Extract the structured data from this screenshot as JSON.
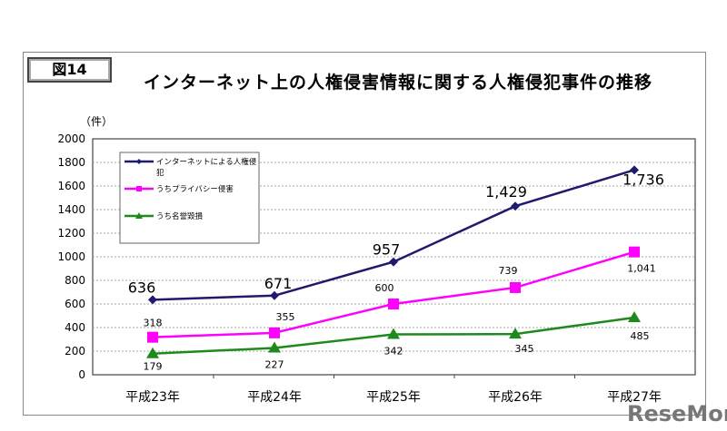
{
  "figure_label": "図14",
  "watermark": "ReseMom",
  "chart_data": {
    "type": "line",
    "title": "インターネット上の人権侵害情報に関する人権侵犯事件の推移",
    "ylabel": "（件）",
    "ylim": [
      0,
      2000
    ],
    "yticks": [
      0,
      200,
      400,
      600,
      800,
      1000,
      1200,
      1400,
      1600,
      1800,
      2000
    ],
    "grid": true,
    "legend_position": "top-left",
    "categories": [
      "平成23年",
      "平成24年",
      "平成25年",
      "平成26年",
      "平成27年"
    ],
    "series": [
      {
        "name": "インターネットによる人権侵犯",
        "color": "#1f1a6e",
        "marker": "diamond",
        "values": [
          636,
          671,
          957,
          1429,
          1736
        ],
        "labels": [
          "636",
          "671",
          "957",
          "1,429",
          "1,736"
        ]
      },
      {
        "name": "うちプライバシー侵害",
        "color": "#ff00ff",
        "marker": "square",
        "values": [
          318,
          355,
          600,
          739,
          1041
        ],
        "labels": [
          "318",
          "355",
          "600",
          "739",
          "1,041"
        ]
      },
      {
        "name": "うち名誉毀損",
        "color": "#1e8a1e",
        "marker": "triangle",
        "values": [
          179,
          227,
          342,
          345,
          485
        ],
        "labels": [
          "179",
          "227",
          "342",
          "345",
          "485"
        ]
      }
    ]
  }
}
